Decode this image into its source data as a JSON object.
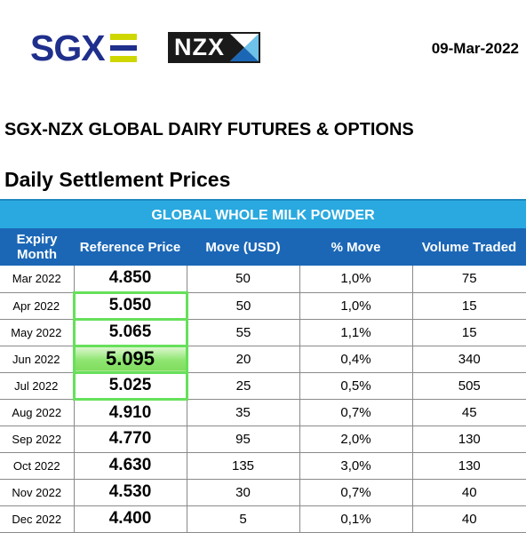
{
  "header": {
    "sgx_logo_text": "SGX",
    "nzx_logo_text": "NZX",
    "date": "09-Mar-2022",
    "colors": {
      "sgx_blue": "#1f2f8c",
      "sgx_yellow": "#cfd700",
      "nzx_light_blue": "#6ec1e9",
      "nzx_dark_blue": "#1b67b6"
    }
  },
  "titles": {
    "main": "SGX-NZX GLOBAL DAIRY FUTURES & OPTIONS",
    "sub": "Daily Settlement Prices"
  },
  "table": {
    "product": "GLOBAL WHOLE MILK POWDER",
    "columns": {
      "expiry": "Expiry Month",
      "reference": "Reference Price",
      "move": "Move (USD)",
      "pct_move": "% Move",
      "volume": "Volume Traded"
    },
    "rows": [
      {
        "month": "Mar 2022",
        "price": "4.850",
        "move": "50",
        "pct": "1,0%",
        "volume": "75"
      },
      {
        "month": "Apr 2022",
        "price": "5.050",
        "move": "50",
        "pct": "1,0%",
        "volume": "15"
      },
      {
        "month": "May 2022",
        "price": "5.065",
        "move": "55",
        "pct": "1,1%",
        "volume": "15"
      },
      {
        "month": "Jun 2022",
        "price": "5.095",
        "move": "20",
        "pct": "0,4%",
        "volume": "340"
      },
      {
        "month": "Jul 2022",
        "price": "5.025",
        "move": "25",
        "pct": "0,5%",
        "volume": "505"
      },
      {
        "month": "Aug 2022",
        "price": "4.910",
        "move": "35",
        "pct": "0,7%",
        "volume": "45"
      },
      {
        "month": "Sep 2022",
        "price": "4.770",
        "move": "95",
        "pct": "2,0%",
        "volume": "130"
      },
      {
        "month": "Oct 2022",
        "price": "4.630",
        "move": "135",
        "pct": "3,0%",
        "volume": "130"
      },
      {
        "month": "Nov 2022",
        "price": "4.530",
        "move": "30",
        "pct": "0,7%",
        "volume": "40"
      },
      {
        "month": "Dec 2022",
        "price": "4.400",
        "move": "5",
        "pct": "0,1%",
        "volume": "40"
      }
    ],
    "highlight_color": "#66e05a"
  }
}
